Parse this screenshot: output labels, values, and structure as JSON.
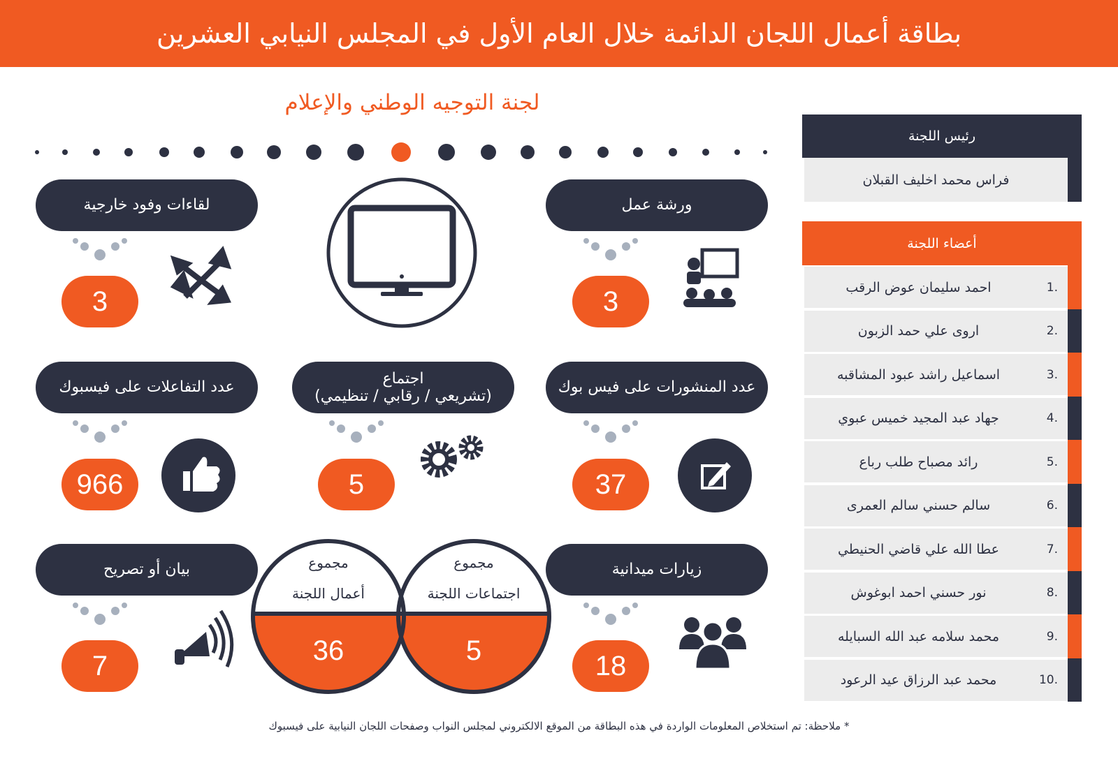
{
  "header": {
    "title": "بطاقة أعمال اللجان الدائمة خلال العام الأول في المجلس النيابي العشرين"
  },
  "committee_name": "لجنة التوجيه الوطني والإعلام",
  "chair": {
    "label": "رئيس اللجنة",
    "name": "فراس محمد اخليف القبلان"
  },
  "members": {
    "label": "أعضاء اللجنة",
    "items": [
      {
        "number": "1.",
        "name": "احمد سليمان عوض الرقب"
      },
      {
        "number": "2.",
        "name": "اروى علي حمد الزبون"
      },
      {
        "number": "3.",
        "name": "اسماعيل راشد عبود المشاقبه"
      },
      {
        "number": "4.",
        "name": "جهاد عبد المجيد خميس عبوي"
      },
      {
        "number": "5.",
        "name": "رائد مصباح طلب رباع"
      },
      {
        "number": "6.",
        "name": "سالم حسني سالم العمرى"
      },
      {
        "number": "7.",
        "name": "عطا الله علي قاضي الحنيطي"
      },
      {
        "number": "8.",
        "name": "نور حسني احمد ابوغوش"
      },
      {
        "number": "9.",
        "name": "محمد سلامه عبد الله السبايله"
      },
      {
        "number": "10.",
        "name": "محمد عبد الرزاق عيد الرعود"
      }
    ]
  },
  "stats": [
    {
      "label": "ورشة عمل",
      "value": 3
    },
    {
      "label": "لقاءات وفود خارجية",
      "value": 3
    },
    {
      "label": "عدد المنشورات على فيس بوك",
      "value": 37
    },
    {
      "lines": [
        "اجتماع",
        "(تشريعي / رقابي / تنظيمي)"
      ],
      "value": 5
    },
    {
      "label": "عدد التفاعلات على فيسبوك",
      "value": 966
    },
    {
      "label": "زيارات ميدانية",
      "value": 18
    },
    {
      "label": "بيان أو تصريح",
      "value": 7
    }
  ],
  "totals": [
    {
      "lines": [
        "مجموع",
        "اجتماعات اللجنة"
      ],
      "value": 5
    },
    {
      "lines": [
        "مجموع",
        "أعمال اللجنة"
      ],
      "value": 36
    }
  ],
  "note": "* ملاحظة: تم استخلاص المعلومات الواردة في هذه البطاقة من الموقع الالكتروني لمجلس النواب وصفحات اللجان النيابية على فيسبوك"
}
